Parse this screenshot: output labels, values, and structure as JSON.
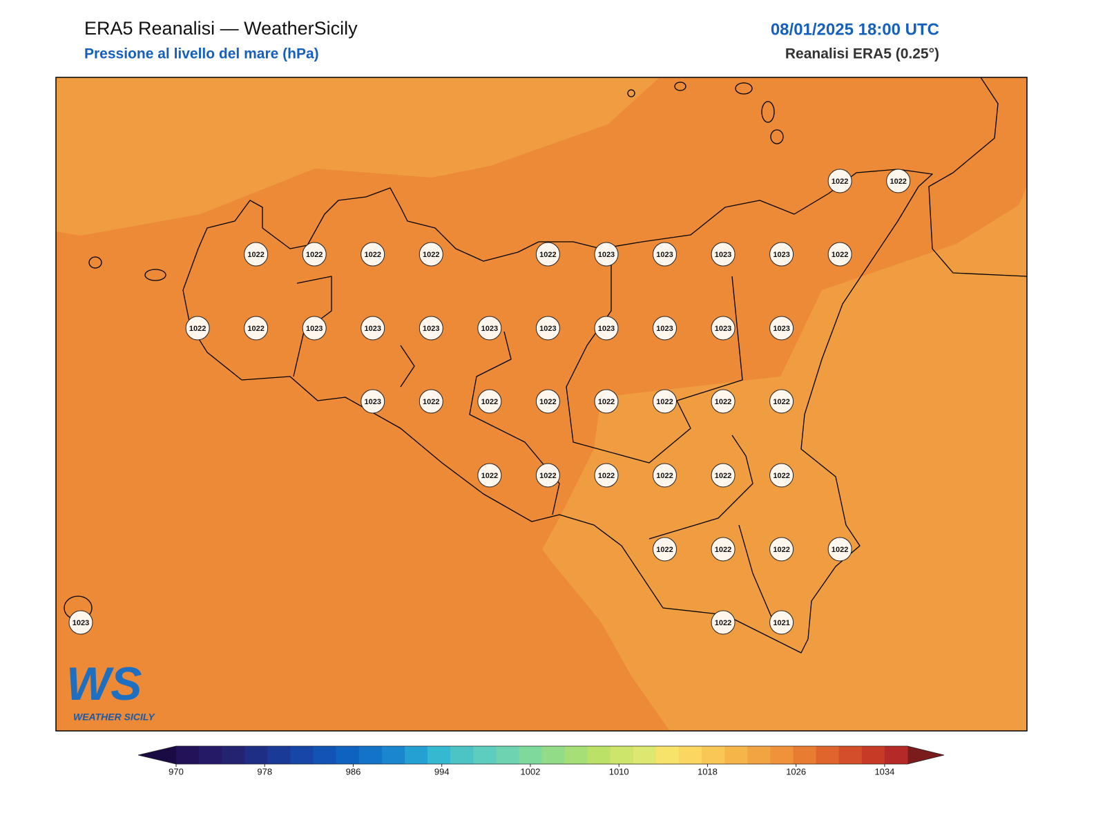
{
  "header": {
    "title": "ERA5 Reanalisi — WeatherSicily",
    "subtitle": "Pressione al livello del mare (hPa)",
    "date": "08/01/2025 18:00 UTC",
    "source": "Reanalisi ERA5 (0.25°)"
  },
  "stations": {
    "rows": [
      [
        1022,
        1022
      ],
      [
        1022,
        1022,
        1022,
        1022,
        1022,
        1023,
        1023,
        1023,
        1023,
        1022
      ],
      [
        1022,
        1022,
        1023,
        1023,
        1023,
        1023,
        1023,
        1023,
        1023,
        1023,
        1023
      ],
      [
        1023,
        1022,
        1022,
        1022,
        1022,
        1022,
        1022,
        1022
      ],
      [
        1022,
        1022,
        1022,
        1022,
        1022,
        1022
      ],
      [
        1022,
        1022,
        1022,
        1022
      ],
      [
        1023,
        1022,
        1021
      ]
    ]
  },
  "colorbar": {
    "lim": [
      970,
      1034
    ],
    "ticks": [
      970,
      978,
      986,
      994,
      1002,
      1010,
      1018,
      1026,
      1034
    ],
    "colors": [
      "#23125a",
      "#241a66",
      "#232372",
      "#1f2e85",
      "#1a3a98",
      "#1546a8",
      "#1254b5",
      "#0f63c0",
      "#1273c8",
      "#1a86cf",
      "#25a0d3",
      "#35b9d1",
      "#4cc4c6",
      "#5ccdbf",
      "#6dd3b0",
      "#7ed99d",
      "#92dc88",
      "#a6df76",
      "#bbe267",
      "#cde56b",
      "#dde871",
      "#f7e36a",
      "#fbd660",
      "#f9c756",
      "#f5b549",
      "#f2a342",
      "#ef9239",
      "#e87d32",
      "#e0652d",
      "#d44f29",
      "#c63a26",
      "#b52a26"
    ],
    "under": "#1a0b45",
    "over": "#7a1c1c"
  },
  "logo": {
    "mark": "WS",
    "name": "WEATHER SICILY"
  }
}
